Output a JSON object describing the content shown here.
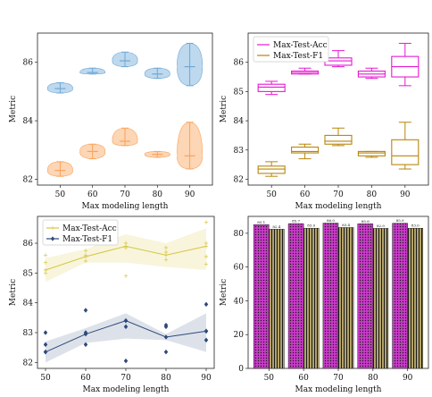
{
  "chart_data": [
    {
      "panel": "top-left",
      "type": "violin",
      "xlabel": "Max modeling length",
      "ylabel": "Metric",
      "categories": [
        "50",
        "60",
        "70",
        "80",
        "90"
      ],
      "ylim": [
        81.8,
        87.0
      ],
      "yticks": [
        "82",
        "84",
        "86"
      ],
      "colors": {
        "acc": "#6fa8d6",
        "f1": "#f9a35c"
      },
      "series": [
        {
          "key": "acc",
          "min": [
            84.95,
            85.6,
            85.85,
            85.45,
            85.2
          ],
          "median": [
            85.1,
            85.65,
            86.05,
            85.6,
            85.85
          ],
          "max": [
            85.3,
            85.8,
            86.35,
            85.8,
            86.65
          ]
        },
        {
          "key": "f1",
          "min": [
            82.1,
            82.7,
            83.15,
            82.75,
            82.35
          ],
          "median": [
            82.3,
            82.95,
            83.3,
            82.85,
            82.8
          ],
          "max": [
            82.6,
            83.2,
            83.75,
            82.95,
            83.95
          ]
        }
      ]
    },
    {
      "panel": "top-right",
      "type": "box",
      "xlabel": "Max modeling length",
      "ylabel": "Metric",
      "categories": [
        "50",
        "60",
        "70",
        "80",
        "90"
      ],
      "ylim": [
        81.8,
        87.0
      ],
      "yticks": [
        "82",
        "83",
        "84",
        "85",
        "86"
      ],
      "legend_position": "top-left",
      "series": [
        {
          "name": "Max-Test-Acc",
          "color": "#e619d2",
          "min": [
            84.9,
            85.6,
            85.85,
            85.45,
            85.2
          ],
          "q1": [
            85.0,
            85.6,
            85.9,
            85.5,
            85.5
          ],
          "median": [
            85.15,
            85.65,
            86.05,
            85.6,
            85.85
          ],
          "q3": [
            85.25,
            85.7,
            86.15,
            85.7,
            86.2
          ],
          "max": [
            85.35,
            85.8,
            86.4,
            85.8,
            86.65
          ]
        },
        {
          "name": "Max-Test-F1",
          "color": "#b8860b",
          "min": [
            82.1,
            82.7,
            83.15,
            82.75,
            82.35
          ],
          "q1": [
            82.2,
            82.9,
            83.2,
            82.8,
            82.5
          ],
          "median": [
            82.35,
            82.95,
            83.3,
            82.9,
            82.8
          ],
          "q3": [
            82.45,
            83.1,
            83.5,
            82.95,
            83.35
          ],
          "max": [
            82.6,
            83.2,
            83.75,
            82.95,
            83.95
          ]
        }
      ]
    },
    {
      "panel": "bottom-left",
      "type": "line",
      "xlabel": "Max modeling length",
      "ylabel": "Metric",
      "x": [
        50,
        60,
        70,
        80,
        90
      ],
      "xticks": [
        "50",
        "60",
        "70",
        "80",
        "90"
      ],
      "xlim": [
        48,
        92
      ],
      "ylim": [
        81.8,
        86.9
      ],
      "yticks": [
        "82",
        "83",
        "84",
        "85",
        "86"
      ],
      "legend_position": "top-left",
      "series": [
        {
          "name": "Max-Test-Acc",
          "color": "#d6c73e",
          "mean": [
            85.1,
            85.55,
            85.9,
            85.6,
            85.9
          ],
          "band_low": [
            84.7,
            85.35,
            85.35,
            85.2,
            85.1
          ],
          "band_high": [
            85.5,
            85.8,
            86.3,
            86.0,
            86.5
          ],
          "points": [
            [
              50,
              85.0
            ],
            [
              50,
              85.35
            ],
            [
              50,
              85.6
            ],
            [
              60,
              85.4
            ],
            [
              60,
              85.6
            ],
            [
              60,
              85.75
            ],
            [
              70,
              84.9
            ],
            [
              70,
              85.85
            ],
            [
              70,
              86.0
            ],
            [
              80,
              85.45
            ],
            [
              80,
              85.7
            ],
            [
              80,
              85.85
            ],
            [
              90,
              85.3
            ],
            [
              90,
              85.55
            ],
            [
              90,
              86.0
            ],
            [
              90,
              86.7
            ]
          ]
        },
        {
          "name": "Max-Test-F1",
          "color": "#2e4a7a",
          "mean": [
            82.35,
            82.95,
            83.4,
            82.85,
            83.05
          ],
          "band_low": [
            82.0,
            82.65,
            82.8,
            82.75,
            82.35
          ],
          "band_high": [
            82.7,
            83.15,
            83.65,
            82.95,
            83.65
          ],
          "points": [
            [
              50,
              82.35
            ],
            [
              50,
              82.6
            ],
            [
              50,
              83.0
            ],
            [
              60,
              82.6
            ],
            [
              60,
              83.0
            ],
            [
              60,
              83.75
            ],
            [
              70,
              82.05
            ],
            [
              70,
              83.2
            ],
            [
              70,
              83.4
            ],
            [
              80,
              82.35
            ],
            [
              80,
              83.2
            ],
            [
              80,
              83.25
            ],
            [
              90,
              82.75
            ],
            [
              90,
              83.05
            ],
            [
              90,
              83.95
            ]
          ]
        }
      ]
    },
    {
      "panel": "bottom-right",
      "type": "bar",
      "xlabel": "Max modeling length",
      "ylabel": "Metric",
      "categories": [
        "50",
        "60",
        "70",
        "80",
        "90"
      ],
      "ylim": [
        0,
        90
      ],
      "yticks": [
        "0",
        "20",
        "40",
        "60",
        "80"
      ],
      "series": [
        {
          "key": "acc",
          "color": "#c83cc8",
          "hatch": "dots",
          "values": [
            85.1,
            85.7,
            86.0,
            85.6,
            85.9
          ],
          "labels": [
            "85.1",
            "85.7",
            "86.0",
            "85.6",
            "85.9"
          ]
        },
        {
          "key": "f1",
          "color": "#b3a36a",
          "hatch": "vertical-lines",
          "values": [
            82.4,
            83.0,
            83.4,
            82.9,
            83.0
          ],
          "labels": [
            "82.4",
            "83.0",
            "83.4",
            "82.9",
            "83.0"
          ]
        }
      ]
    }
  ]
}
